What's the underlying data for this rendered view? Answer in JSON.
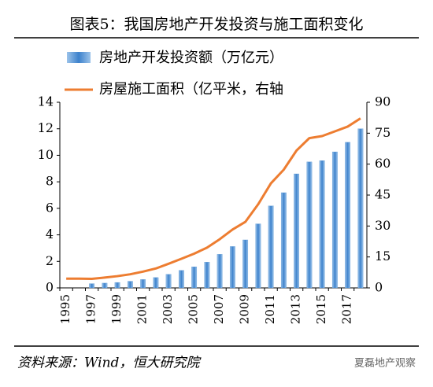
{
  "chart_data": {
    "type": "bar_line",
    "title": "图表5：我国房地产开发投资与施工面积变化",
    "source": "资料来源：Wind，恒大研究院",
    "watermark": "夏磊地产观察",
    "categories": [
      "1995",
      null,
      "1997",
      null,
      "1999",
      null,
      "2001",
      null,
      "2003",
      null,
      "2005",
      null,
      "2007",
      null,
      "2009",
      null,
      "2011",
      null,
      "2013",
      null,
      "2015",
      null,
      "2017",
      null
    ],
    "series": [
      {
        "name": "房地产开发投资额（万亿元）",
        "type": "bar",
        "color": "#4a8ed0",
        "values": [
          null,
          null,
          0.32,
          0.36,
          0.41,
          0.5,
          0.63,
          0.78,
          1.02,
          1.32,
          1.59,
          1.94,
          2.53,
          3.12,
          3.62,
          4.83,
          6.18,
          7.18,
          8.6,
          9.5,
          9.6,
          10.26,
          10.98,
          12.0
        ]
      },
      {
        "name": "房屋施工面积（亿平米，右轴",
        "type": "line",
        "axis": "y2",
        "color": "#ed7d31",
        "values": [
          4.5,
          4.5,
          4.4,
          5.0,
          5.7,
          6.6,
          7.9,
          9.4,
          11.7,
          14.1,
          16.6,
          19.5,
          23.6,
          28.3,
          32.0,
          40.5,
          50.7,
          57.3,
          66.6,
          72.6,
          73.6,
          75.9,
          78.2,
          82.2
        ]
      }
    ],
    "ylim": [
      0,
      14
    ],
    "yticks": [
      0,
      2,
      4,
      6,
      8,
      10,
      12,
      14
    ],
    "y2lim": [
      0,
      90
    ],
    "y2ticks": [
      0,
      15,
      30,
      45,
      60,
      75,
      90
    ]
  }
}
